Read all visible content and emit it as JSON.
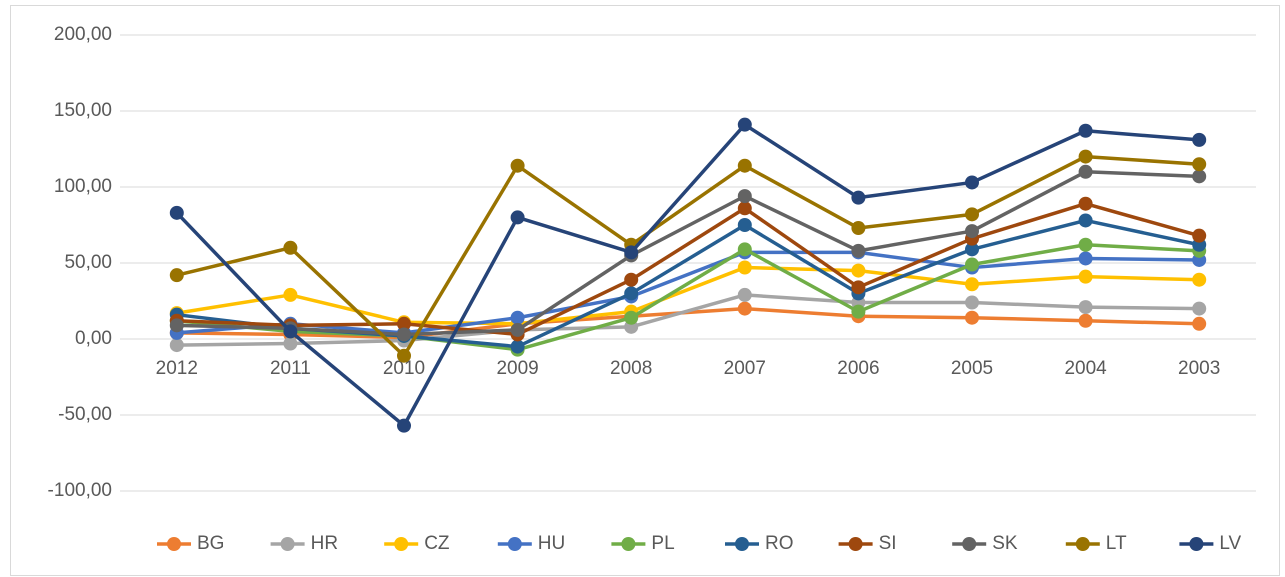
{
  "chart_data": {
    "type": "line",
    "categories": [
      "2012",
      "2011",
      "2010",
      "2009",
      "2008",
      "2007",
      "2006",
      "2005",
      "2004",
      "2003"
    ],
    "series": [
      {
        "name": "BG",
        "color": "#ed7d31",
        "values": [
          4,
          3,
          1,
          10,
          15,
          20,
          15,
          14,
          12,
          10
        ]
      },
      {
        "name": "HR",
        "color": "#a5a5a5",
        "values": [
          -4,
          -3,
          -1,
          6,
          8,
          29,
          24,
          24,
          21,
          20
        ]
      },
      {
        "name": "CZ",
        "color": "#ffc000",
        "values": [
          17,
          29,
          11,
          10,
          18,
          47,
          45,
          36,
          41,
          39
        ]
      },
      {
        "name": "HU",
        "color": "#4472c4",
        "values": [
          4,
          10,
          4,
          14,
          28,
          57,
          57,
          47,
          53,
          52
        ]
      },
      {
        "name": "PL",
        "color": "#70ad47",
        "values": [
          12,
          5,
          2,
          -7,
          14,
          59,
          18,
          49,
          62,
          58
        ]
      },
      {
        "name": "RO",
        "color": "#255e91",
        "values": [
          16,
          7,
          2,
          -5,
          30,
          75,
          30,
          59,
          78,
          62
        ]
      },
      {
        "name": "SI",
        "color": "#9e480e",
        "values": [
          12,
          9,
          10,
          3,
          39,
          86,
          34,
          66,
          89,
          68
        ]
      },
      {
        "name": "SK",
        "color": "#636363",
        "values": [
          9,
          7,
          3,
          6,
          55,
          94,
          58,
          71,
          110,
          107
        ]
      },
      {
        "name": "LT",
        "color": "#997300",
        "values": [
          42,
          60,
          -11,
          114,
          62,
          114,
          73,
          82,
          120,
          115
        ]
      },
      {
        "name": "LV",
        "color": "#264478",
        "values": [
          83,
          5,
          -57,
          80,
          57,
          141,
          93,
          103,
          137,
          131
        ]
      }
    ],
    "ylim": [
      -100,
      200
    ],
    "yticks": [
      {
        "value": -100,
        "label": "-100,00"
      },
      {
        "value": -50,
        "label": "-50,00"
      },
      {
        "value": 0,
        "label": "0,00"
      },
      {
        "value": 50,
        "label": "50,00"
      },
      {
        "value": 100,
        "label": "100,00"
      },
      {
        "value": 150,
        "label": "150,00"
      },
      {
        "value": 200,
        "label": "200,00"
      }
    ],
    "grid": true,
    "legend": "bottom"
  }
}
